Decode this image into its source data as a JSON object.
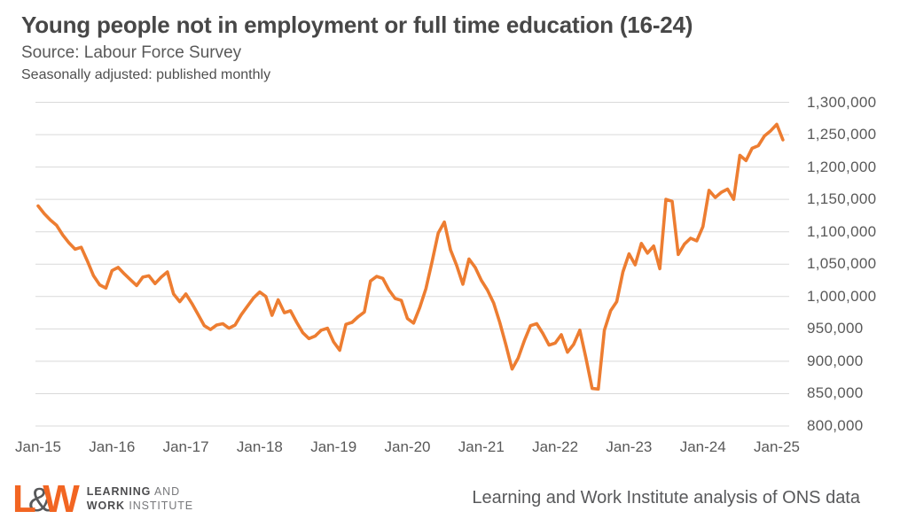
{
  "page": {
    "background": "#ffffff"
  },
  "header": {
    "title": "Young people not in employment or full time education (16-24)",
    "source_line": "Source: Labour Force Survey",
    "note_line": "Seasonally adjusted: published monthly"
  },
  "footer": {
    "logo": {
      "letter_l": "L",
      "ampersand": "&",
      "letter_w": "W",
      "line1_bold": "LEARNING",
      "line1_rest": " AND",
      "line2_bold": "WORK",
      "line2_rest": " INSTITUTE",
      "orange": "#F26522",
      "gray": "#58595B"
    },
    "attribution": "Learning and Work Institute analysis of ONS data"
  },
  "chart_data": {
    "type": "line",
    "title": "Young people not in employment or full time education (16-24)",
    "subtitle": "Source: Labour Force Survey",
    "note": "Seasonally adjusted: published monthly",
    "frequency": "monthly",
    "x_start": "Jan-2015",
    "x_end": "Feb-2025",
    "x_tick_labels": [
      "Jan-15",
      "Jan-16",
      "Jan-17",
      "Jan-18",
      "Jan-19",
      "Jan-20",
      "Jan-21",
      "Jan-22",
      "Jan-23",
      "Jan-24",
      "Jan-25"
    ],
    "y_tick_labels": [
      "1,300,000",
      "1,250,000",
      "1,200,000",
      "1,150,000",
      "1,100,000",
      "1,050,000",
      "1,000,000",
      "950,000",
      "900,000",
      "850,000",
      "800,000"
    ],
    "ylim": [
      800000,
      1300000
    ],
    "y_gridline_step": 50000,
    "grid": "horizontal",
    "gridline_color": "#d9d9d9",
    "series": [
      {
        "name": "Young people not in employment or full time education (16-24)",
        "color": "#ED7D31",
        "values": [
          1140000,
          1128000,
          1118000,
          1110000,
          1095000,
          1083000,
          1073000,
          1076000,
          1055000,
          1032000,
          1018000,
          1013000,
          1040000,
          1045000,
          1035000,
          1026000,
          1017000,
          1030000,
          1032000,
          1020000,
          1030000,
          1038000,
          1004000,
          992000,
          1004000,
          989000,
          972000,
          955000,
          949000,
          956000,
          958000,
          951000,
          956000,
          972000,
          985000,
          998000,
          1007000,
          1000000,
          971000,
          995000,
          975000,
          978000,
          960000,
          944000,
          935000,
          939000,
          948000,
          951000,
          930000,
          917000,
          957000,
          960000,
          969000,
          976000,
          1024000,
          1031000,
          1028000,
          1010000,
          997000,
          994000,
          966000,
          959000,
          983000,
          1012000,
          1054000,
          1098000,
          1115000,
          1072000,
          1048000,
          1019000,
          1058000,
          1045000,
          1025000,
          1010000,
          990000,
          960000,
          925000,
          888000,
          905000,
          932000,
          955000,
          958000,
          943000,
          925000,
          928000,
          941000,
          914000,
          926000,
          948000,
          905000,
          858000,
          857000,
          948000,
          978000,
          992000,
          1038000,
          1066000,
          1049000,
          1082000,
          1067000,
          1078000,
          1043000,
          1150000,
          1147000,
          1065000,
          1081000,
          1090000,
          1086000,
          1108000,
          1164000,
          1153000,
          1161000,
          1166000,
          1150000,
          1218000,
          1210000,
          1229000,
          1233000,
          1248000,
          1256000,
          1266000,
          1242000
        ]
      }
    ]
  }
}
